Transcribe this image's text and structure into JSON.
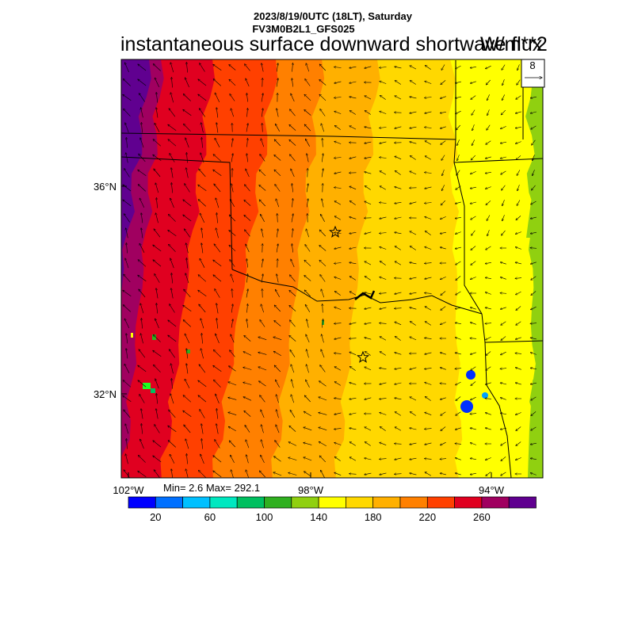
{
  "header": {
    "datetime": "2023/8/19/0UTC (18LT), Saturday",
    "model": "FV3M0B2L1_GFS025",
    "title": "instantaneous surface downward shortwave flux",
    "units": "W/m**2"
  },
  "map": {
    "lat_labels": [
      "36°N",
      "32°N"
    ],
    "lon_labels": [
      "102°W",
      "98°W",
      "94°W"
    ],
    "reference_vector_label": "8",
    "star_markers": 2
  },
  "stats": {
    "label": "Min= 2.6 Max= 292.1"
  },
  "colorbar": {
    "labels": [
      "20",
      "60",
      "100",
      "140",
      "180",
      "220",
      "260"
    ],
    "colors": [
      "#0000ff",
      "#0070ff",
      "#00c0ff",
      "#00e8c0",
      "#00c060",
      "#30b020",
      "#90d010",
      "#ffff00",
      "#ffd800",
      "#ffb000",
      "#ff8000",
      "#ff4000",
      "#e00020",
      "#a00060",
      "#600090"
    ]
  }
}
